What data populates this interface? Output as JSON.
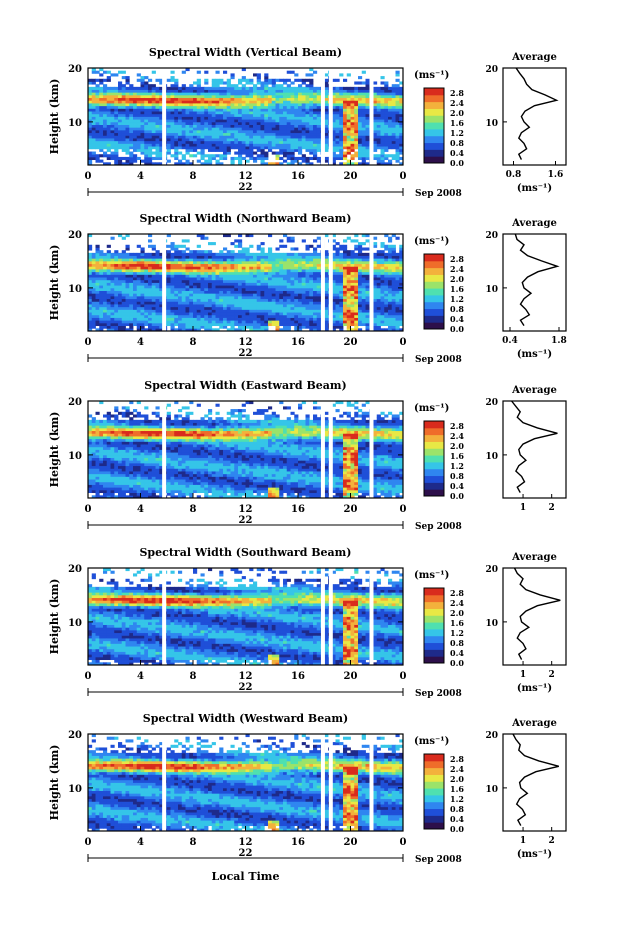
{
  "xlabel_bottom": "Local Time",
  "date_center": "22",
  "date_right": "Sep 2008",
  "ylabel": "Height (km)",
  "unit_label": "(ms⁻¹)",
  "avg_title": "Average",
  "avg_unit": "(ms⁻¹)",
  "colorbar_ticks": [
    "2.8",
    "2.4",
    "2.0",
    "1.6",
    "1.2",
    "0.8",
    "0.4",
    "0.0"
  ],
  "colors": {
    "colormap": [
      "#2d0f4a",
      "#1e2a8a",
      "#1f4fd8",
      "#2f86f0",
      "#35c5e8",
      "#4fe0b0",
      "#9be36a",
      "#e8e845",
      "#f3b13c",
      "#ef6d2a",
      "#d92b1d"
    ],
    "axis": "#000000",
    "background": "#ffffff"
  },
  "chart_data": [
    {
      "type": "heatmap",
      "title": "Spectral Width (Vertical Beam)",
      "ylabel": "Height (km)",
      "x_ticks": [
        "0",
        "4",
        "8",
        "12",
        "16",
        "20",
        "0"
      ],
      "y_ticks": [
        "20",
        "10"
      ],
      "xlim": [
        0,
        24
      ],
      "ylim": [
        2,
        20
      ],
      "colorbar": {
        "label": "(ms⁻¹)",
        "range": [
          0.0,
          3.0
        ],
        "ticks": [
          2.8,
          2.4,
          2.0,
          1.6,
          1.2,
          0.8,
          0.4,
          0.0
        ]
      },
      "gaps_hours": [
        5.8,
        17.9,
        18.5,
        21.6
      ],
      "features": {
        "tropopause_km": 14,
        "convection_hours": [
          19.5,
          20.5
        ]
      },
      "average": {
        "title": "Average",
        "xlabel": "(ms⁻¹)",
        "x_ticks": [
          "0.8",
          "1.6"
        ],
        "xlim": [
          0.6,
          1.8
        ],
        "y": [
          20,
          19,
          18,
          17,
          16,
          15,
          14,
          13,
          12,
          11,
          10,
          9,
          8,
          7,
          6,
          5,
          4,
          3
        ],
        "x": [
          0.85,
          0.92,
          1.0,
          1.05,
          1.15,
          1.4,
          1.62,
          1.2,
          1.02,
          0.95,
          1.0,
          1.1,
          0.95,
          0.9,
          1.0,
          1.05,
          0.9,
          0.95
        ]
      }
    },
    {
      "type": "heatmap",
      "title": "Spectral Width (Northward Beam)",
      "ylabel": "Height (km)",
      "x_ticks": [
        "0",
        "4",
        "8",
        "12",
        "16",
        "20",
        "0"
      ],
      "y_ticks": [
        "20",
        "10"
      ],
      "xlim": [
        0,
        24
      ],
      "ylim": [
        2,
        20
      ],
      "colorbar": {
        "label": "(ms⁻¹)",
        "range": [
          0.0,
          3.0
        ],
        "ticks": [
          2.8,
          2.4,
          2.0,
          1.6,
          1.2,
          0.8,
          0.4,
          0.0
        ]
      },
      "gaps_hours": [
        5.8,
        17.9,
        18.5,
        21.6
      ],
      "features": {
        "tropopause_km": 14,
        "convection_hours": [
          19.5,
          20.5
        ]
      },
      "average": {
        "title": "Average",
        "xlabel": "(ms⁻¹)",
        "x_ticks": [
          "0.4",
          "1.8"
        ],
        "xlim": [
          0.2,
          2.0
        ],
        "y": [
          20,
          19,
          18,
          17,
          16,
          15,
          14,
          13,
          12,
          11,
          10,
          9,
          8,
          7,
          6,
          5,
          4,
          3
        ],
        "x": [
          0.55,
          0.6,
          0.8,
          0.7,
          0.9,
          1.3,
          1.75,
          1.2,
          0.9,
          0.75,
          0.8,
          1.0,
          0.8,
          0.7,
          0.85,
          0.95,
          0.7,
          0.8
        ]
      }
    },
    {
      "type": "heatmap",
      "title": "Spectral Width (Eastward Beam)",
      "ylabel": "Height (km)",
      "x_ticks": [
        "0",
        "4",
        "8",
        "12",
        "16",
        "20",
        "0"
      ],
      "y_ticks": [
        "20",
        "10"
      ],
      "xlim": [
        0,
        24
      ],
      "ylim": [
        2,
        20
      ],
      "colorbar": {
        "label": "(ms⁻¹)",
        "range": [
          0.0,
          3.0
        ],
        "ticks": [
          2.8,
          2.4,
          2.0,
          1.6,
          1.2,
          0.8,
          0.4,
          0.0
        ]
      },
      "gaps_hours": [
        5.8,
        17.9,
        18.5,
        21.6
      ],
      "features": {
        "tropopause_km": 14,
        "convection_hours": [
          19.5,
          20.5
        ]
      },
      "average": {
        "title": "Average",
        "xlabel": "",
        "x_ticks": [
          "1",
          "2"
        ],
        "xlim": [
          0.3,
          2.5
        ],
        "y": [
          20,
          19,
          18,
          17,
          16,
          15,
          14,
          13,
          12,
          11,
          10,
          9,
          8,
          7,
          6,
          5,
          4,
          3
        ],
        "x": [
          0.6,
          0.75,
          0.9,
          0.8,
          1.0,
          1.5,
          2.2,
          1.4,
          1.0,
          0.85,
          0.9,
          1.1,
          0.85,
          0.75,
          0.95,
          1.05,
          0.8,
          0.9
        ]
      }
    },
    {
      "type": "heatmap",
      "title": "Spectral Width (Southward Beam)",
      "ylabel": "Height (km)",
      "x_ticks": [
        "0",
        "4",
        "8",
        "12",
        "16",
        "20",
        "0"
      ],
      "y_ticks": [
        "20",
        "10"
      ],
      "xlim": [
        0,
        24
      ],
      "ylim": [
        2,
        20
      ],
      "colorbar": {
        "label": "(ms⁻¹)",
        "range": [
          0.0,
          3.0
        ],
        "ticks": [
          2.8,
          2.4,
          2.0,
          1.6,
          1.2,
          0.8,
          0.4,
          0.0
        ]
      },
      "gaps_hours": [
        5.8,
        17.9,
        18.5,
        21.6
      ],
      "features": {
        "tropopause_km": 14,
        "convection_hours": [
          19.5,
          20.5
        ]
      },
      "average": {
        "title": "Average",
        "xlabel": "(ms⁻¹)",
        "x_ticks": [
          "1",
          "2"
        ],
        "xlim": [
          0.3,
          2.5
        ],
        "y": [
          20,
          19,
          18,
          17,
          16,
          15,
          14,
          13,
          12,
          11,
          10,
          9,
          8,
          7,
          6,
          5,
          4,
          3
        ],
        "x": [
          0.7,
          0.8,
          1.0,
          0.9,
          1.1,
          1.6,
          2.3,
          1.5,
          1.1,
          0.9,
          0.95,
          1.2,
          0.9,
          0.8,
          1.0,
          1.1,
          0.85,
          0.95
        ]
      }
    },
    {
      "type": "heatmap",
      "title": "Spectral Width (Westward Beam)",
      "ylabel": "Height (km)",
      "x_ticks": [
        "0",
        "4",
        "8",
        "12",
        "16",
        "20",
        "0"
      ],
      "y_ticks": [
        "20",
        "10"
      ],
      "xlim": [
        0,
        24
      ],
      "ylim": [
        2,
        20
      ],
      "colorbar": {
        "label": "(ms⁻¹)",
        "range": [
          0.0,
          3.0
        ],
        "ticks": [
          2.8,
          2.4,
          2.0,
          1.6,
          1.2,
          0.8,
          0.4,
          0.0
        ]
      },
      "gaps_hours": [
        5.8,
        17.9,
        18.5,
        21.6
      ],
      "features": {
        "tropopause_km": 14,
        "convection_hours": [
          19.5,
          20.5
        ]
      },
      "average": {
        "title": "Average",
        "xlabel": "(ms⁻¹)",
        "x_ticks": [
          "1",
          "2"
        ],
        "xlim": [
          0.3,
          2.5
        ],
        "y": [
          20,
          19,
          18,
          17,
          16,
          15,
          14,
          13,
          12,
          11,
          10,
          9,
          8,
          7,
          6,
          5,
          4,
          3
        ],
        "x": [
          0.65,
          0.75,
          0.9,
          0.85,
          1.05,
          1.55,
          2.25,
          1.45,
          1.05,
          0.88,
          0.92,
          1.15,
          0.88,
          0.78,
          0.98,
          1.08,
          0.82,
          0.92
        ]
      }
    }
  ]
}
